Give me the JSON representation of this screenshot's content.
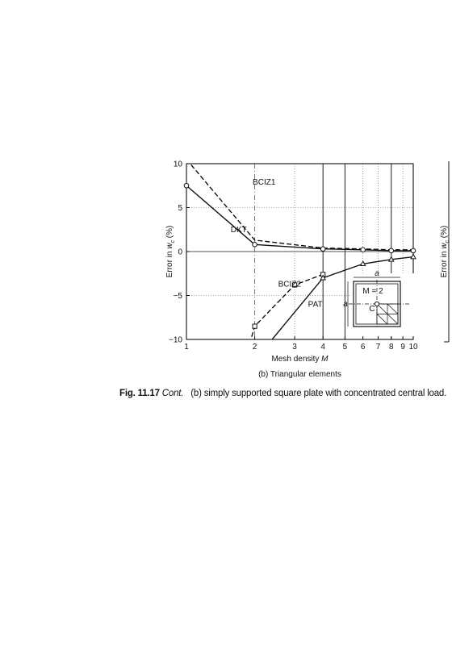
{
  "caption": {
    "fig_label": "Fig. 11.17",
    "cont": "Cont.",
    "text": "(b) simply supported square plate with concentrated central load."
  },
  "right_panel_ylabel": "Error in w_c (%)",
  "chart_data": {
    "type": "line",
    "subtitle": "(b) Triangular elements",
    "xlabel": "Mesh density M",
    "ylabel": "Error in w_c (%)",
    "x_scale": "log",
    "xlim": [
      1,
      10
    ],
    "ylim": [
      -10,
      10
    ],
    "x_ticks": [
      1,
      2,
      3,
      4,
      5,
      6,
      7,
      8,
      9,
      10
    ],
    "y_ticks": [
      10,
      5,
      0,
      -5,
      -10
    ],
    "grid": true,
    "series": [
      {
        "name": "BCIZ1",
        "style": "dashed",
        "marker": "none",
        "x": [
          1,
          2,
          4,
          6,
          8,
          10
        ],
        "y": [
          10.5,
          1.3,
          0.4,
          0.3,
          0.2,
          0.2
        ]
      },
      {
        "name": "DKT",
        "style": "solid",
        "marker": "circle",
        "x": [
          1,
          2,
          4,
          6,
          8,
          10
        ],
        "y": [
          7.5,
          0.8,
          0.3,
          0.2,
          0.1,
          0.1
        ]
      },
      {
        "name": "BCIZ2",
        "style": "dashed",
        "marker": "square",
        "x": [
          1.9,
          2,
          3,
          4
        ],
        "y": [
          -10.5,
          -8.5,
          -3.8,
          -2.6
        ]
      },
      {
        "name": "PAT",
        "style": "solid",
        "marker": "triangle",
        "x": [
          2.3,
          4,
          6,
          8,
          10
        ],
        "y": [
          -10.5,
          -3.0,
          -1.4,
          -0.9,
          -0.6
        ]
      }
    ],
    "inset": {
      "label_M": "M = 2",
      "label_a": "a",
      "label_C": "C"
    }
  }
}
